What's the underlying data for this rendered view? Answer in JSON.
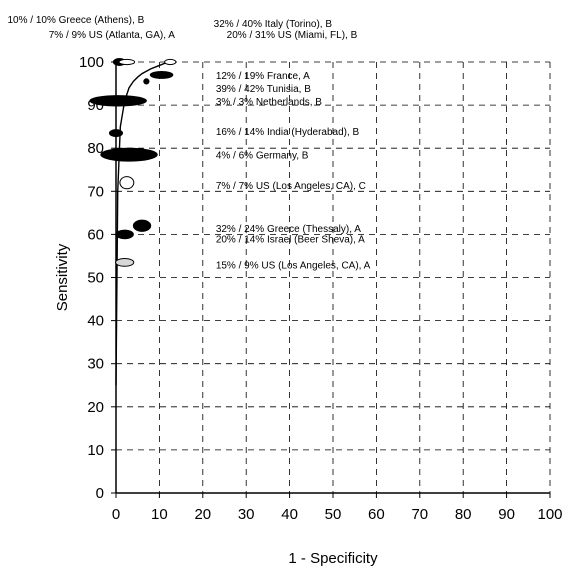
{
  "chart_data": {
    "type": "scatter",
    "title": "",
    "xlabel": "1 - Specificity",
    "ylabel": "Sensitivity",
    "xlim": [
      0,
      100
    ],
    "ylim": [
      0,
      100
    ],
    "xticks": [
      "0",
      "10",
      "20",
      "30",
      "40",
      "50",
      "60",
      "70",
      "80",
      "90",
      "100"
    ],
    "yticks": [
      "0",
      "10",
      "20",
      "30",
      "40",
      "50",
      "60",
      "70",
      "80",
      "90",
      "100"
    ],
    "grid": true,
    "points": [
      {
        "x": 0.8,
        "y": 100,
        "rx": 1.4,
        "ry": 0.8,
        "fill": "black",
        "label": "10% / 10%  Greece (Athens), B"
      },
      {
        "x": 12.5,
        "y": 100,
        "rx": 1.3,
        "ry": 0.6,
        "fill": "white",
        "label": "32% / 40%  Italy (Torino), B"
      },
      {
        "x": 2.5,
        "y": 100,
        "rx": 1.8,
        "ry": 0.6,
        "fill": "white",
        "label": "7% / 9%  US (Atlanta, GA), A"
      },
      {
        "x": 10.5,
        "y": 97,
        "rx": 2.6,
        "ry": 0.8,
        "fill": "black",
        "label": "12% / 19%  France, A"
      },
      {
        "x": 7,
        "y": 95.5,
        "rx": 0.6,
        "ry": 0.6,
        "fill": "black",
        "label": "39% / 42%  Tunisia, B"
      },
      {
        "x": 0.5,
        "y": 91,
        "rx": 6.5,
        "ry": 1.2,
        "fill": "black",
        "label": "3% / 3%  Netherlands, B"
      },
      {
        "x": 0,
        "y": 83.5,
        "rx": 1.5,
        "ry": 0.8,
        "fill": "black",
        "label": "16% / 14%  India (Hyderabad), B"
      },
      {
        "x": 3,
        "y": 78.5,
        "rx": 6.5,
        "ry": 1.5,
        "fill": "black",
        "label": "4% / 6%  Germany, B"
      },
      {
        "x": 2.5,
        "y": 72,
        "rx": 1.6,
        "ry": 1.4,
        "fill": "white",
        "label": "7% / 7%  US (Los Angeles, CA), C"
      },
      {
        "x": 6,
        "y": 62,
        "rx": 2.0,
        "ry": 1.3,
        "fill": "black",
        "label": "32% / 24%  Greece (Thessaly), A"
      },
      {
        "x": 2,
        "y": 60,
        "rx": 2.0,
        "ry": 1.0,
        "fill": "black",
        "label": "20% / 14%  Israel (Beer Sheva), A"
      },
      {
        "x": 2,
        "y": 53.5,
        "rx": 2.1,
        "ry": 0.9,
        "fill": "#d8d8d8",
        "label": "15% / 9%  US (Los Angeles, CA), A"
      }
    ],
    "annotations": [
      {
        "text": "10% / 10%  Greece (Athens), B",
        "x": -25,
        "y": 110
      },
      {
        "text": "32% / 40%  Italy (Torino), B",
        "x": 22.5,
        "y": 109
      },
      {
        "text": "7% / 9%  US (Atlanta, GA), A",
        "x": -15.5,
        "y": 106.5
      },
      {
        "text": "20% / 31%  US (Miami, FL), B",
        "x": 25.5,
        "y": 106.5
      },
      {
        "text": "12% / 19%  France, A",
        "x": 23,
        "y": 97
      },
      {
        "text": "39% / 42%  Tunisia, B",
        "x": 23,
        "y": 94
      },
      {
        "text": "3% / 3%  Netherlands, B",
        "x": 23,
        "y": 91
      },
      {
        "text": "16% / 14%  India (Hyderabad), B",
        "x": 23,
        "y": 84
      },
      {
        "text": "4% / 6%  Germany, B",
        "x": 23,
        "y": 78.5
      },
      {
        "text": "7% / 7%  US (Los Angeles, CA), C",
        "x": 23,
        "y": 71.5
      },
      {
        "text": "32% / 24%  Greece (Thessaly), A",
        "x": 23,
        "y": 61.5
      },
      {
        "text": "20% / 14%  Israel (Beer Sheva), A",
        "x": 23,
        "y": 59
      },
      {
        "text": "15% / 9%  US (Los Angeles, CA), A",
        "x": 23,
        "y": 53
      }
    ],
    "curve": {
      "x": [
        0,
        0.4,
        1,
        2,
        3,
        4,
        5,
        6,
        8,
        10,
        12
      ],
      "y": [
        25,
        70,
        85,
        91,
        94,
        95.5,
        96.5,
        97.3,
        98.4,
        99.2,
        100
      ]
    }
  }
}
